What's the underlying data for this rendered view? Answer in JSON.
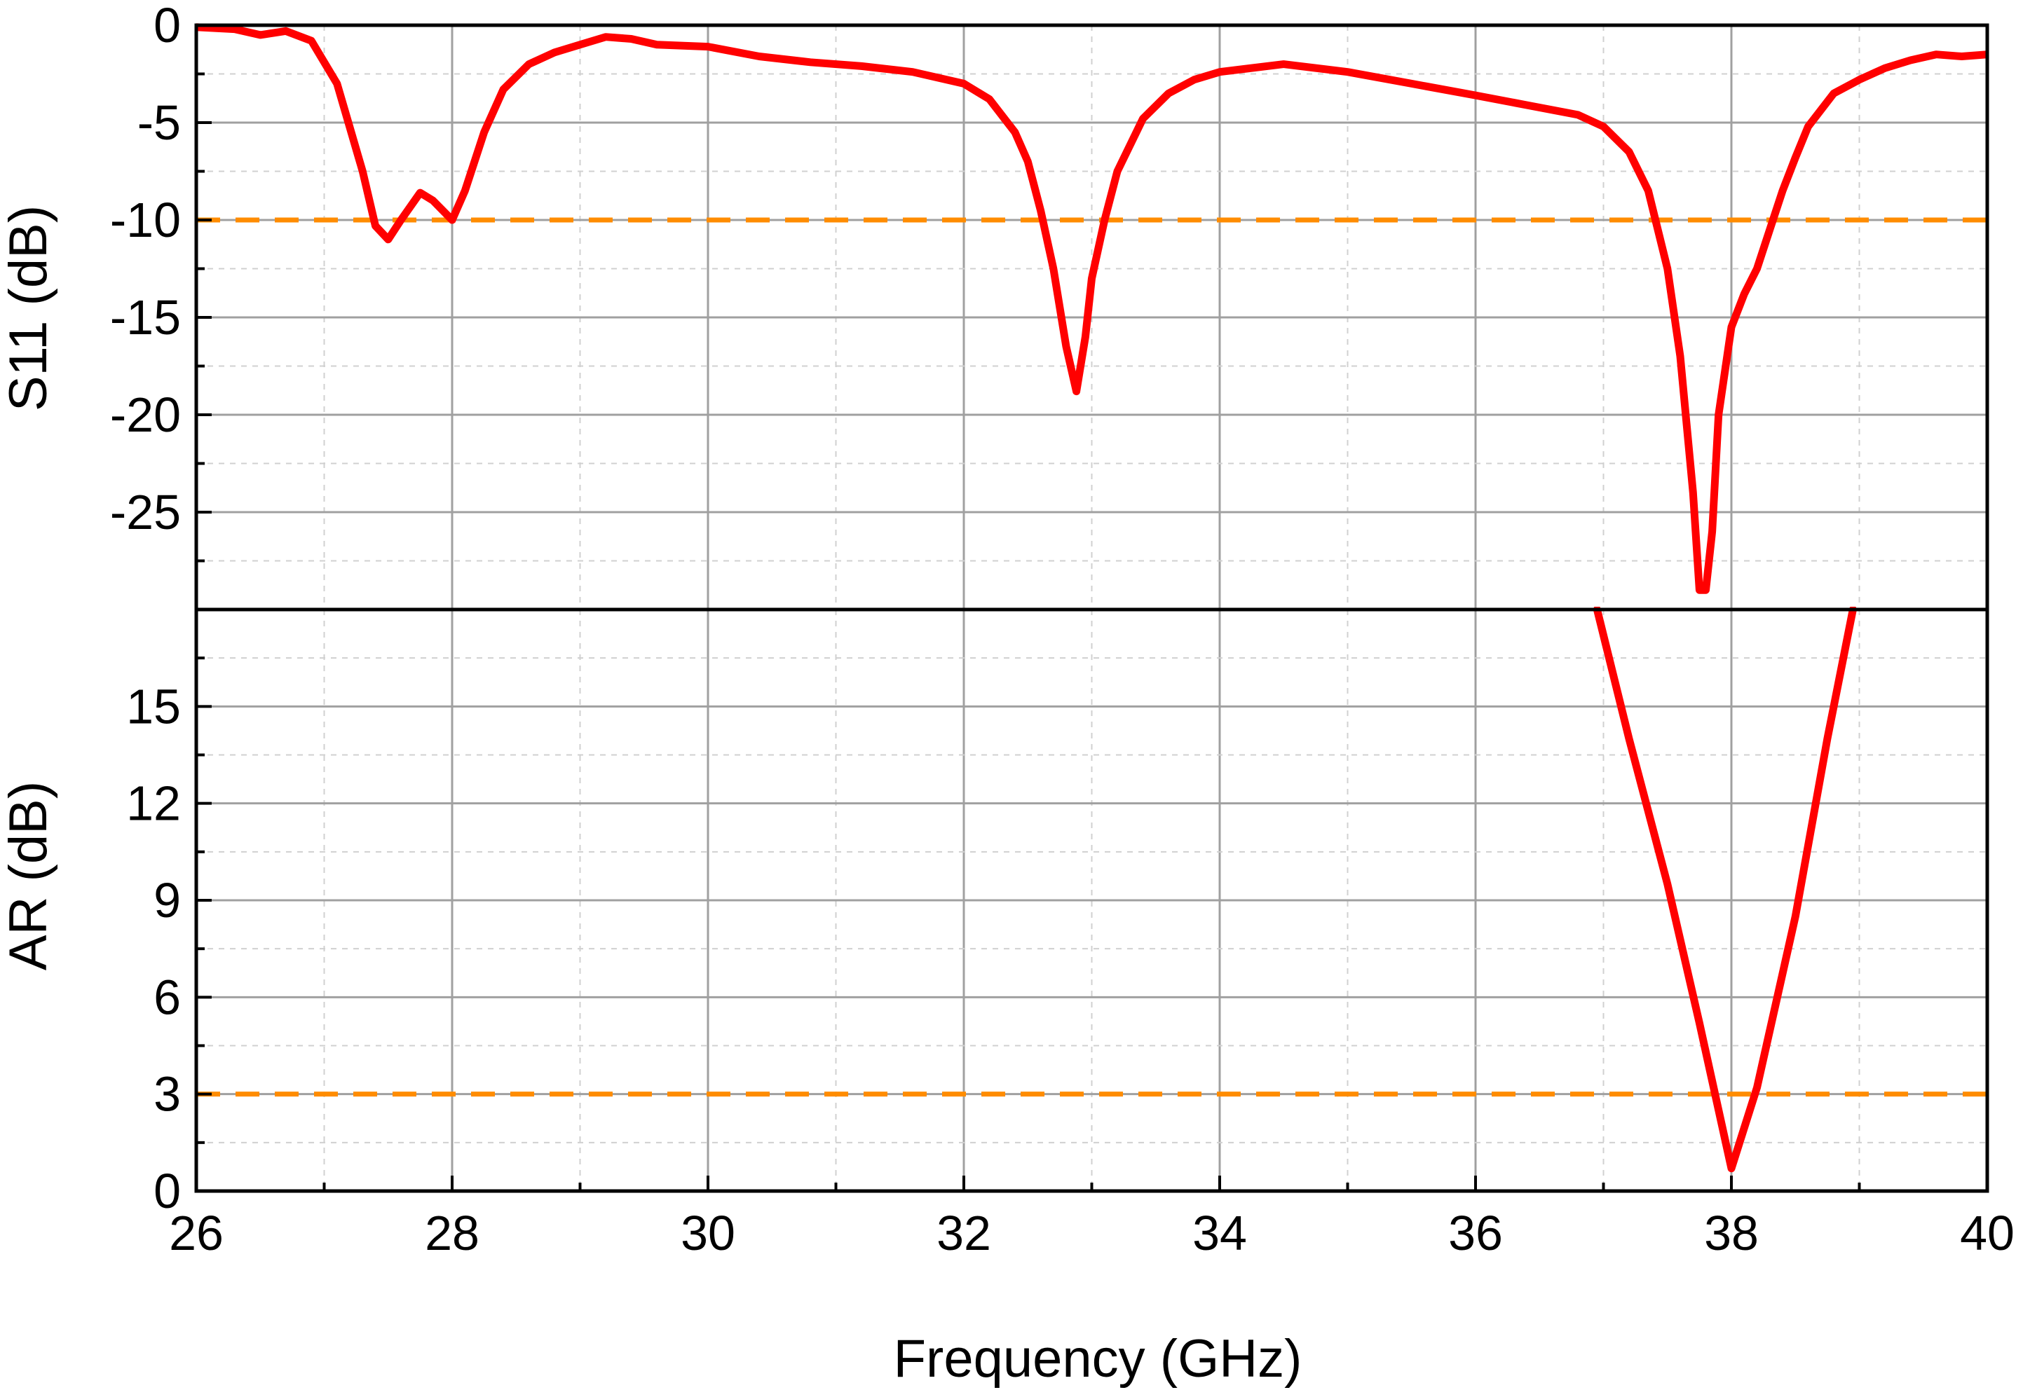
{
  "chart_data": [
    {
      "type": "line",
      "panel": "top",
      "ylabel": "S11 (dB)",
      "xlabel": "Frequency (GHz)",
      "xlim": [
        26,
        40
      ],
      "ylim": [
        -30,
        0
      ],
      "x_ticks": [
        26,
        28,
        30,
        32,
        34,
        36,
        38,
        40
      ],
      "y_ticks": [
        0,
        -5,
        -10,
        -15,
        -20,
        -25
      ],
      "grid": true,
      "reference_line": {
        "y": -10,
        "style": "dashed",
        "color": "#ff8c00"
      },
      "series": [
        {
          "color": "#ff0000",
          "x": [
            26.0,
            26.3,
            26.5,
            26.7,
            26.9,
            27.1,
            27.3,
            27.4,
            27.5,
            27.6,
            27.75,
            27.85,
            28.0,
            28.1,
            28.25,
            28.4,
            28.6,
            28.8,
            29.0,
            29.2,
            29.4,
            29.6,
            30.0,
            30.4,
            30.8,
            31.2,
            31.6,
            32.0,
            32.2,
            32.4,
            32.5,
            32.6,
            32.7,
            32.8,
            32.88,
            32.95,
            33.0,
            33.1,
            33.2,
            33.4,
            33.6,
            33.8,
            34.0,
            34.5,
            35.0,
            35.5,
            36.0,
            36.4,
            36.8,
            37.0,
            37.2,
            37.35,
            37.5,
            37.6,
            37.7,
            37.75,
            37.8,
            37.85,
            37.9,
            38.0,
            38.1,
            38.2,
            38.3,
            38.4,
            38.5,
            38.6,
            38.8,
            39.0,
            39.2,
            39.4,
            39.6,
            39.8,
            40.0
          ],
          "y": [
            -0.1,
            -0.2,
            -0.5,
            -0.3,
            -0.8,
            -3.0,
            -7.5,
            -10.3,
            -11.0,
            -10.0,
            -8.6,
            -9.0,
            -10.0,
            -8.5,
            -5.5,
            -3.3,
            -2.0,
            -1.4,
            -1.0,
            -0.6,
            -0.7,
            -1.0,
            -1.1,
            -1.6,
            -1.9,
            -2.1,
            -2.4,
            -3.0,
            -3.8,
            -5.5,
            -7.0,
            -9.5,
            -12.5,
            -16.5,
            -18.8,
            -16.0,
            -13.0,
            -10.0,
            -7.5,
            -4.8,
            -3.5,
            -2.8,
            -2.4,
            -2.0,
            -2.4,
            -3.0,
            -3.6,
            -4.1,
            -4.6,
            -5.2,
            -6.5,
            -8.5,
            -12.5,
            -17.0,
            -24.0,
            -29.0,
            -29.0,
            -26.0,
            -20.0,
            -15.5,
            -13.8,
            -12.5,
            -10.5,
            -8.5,
            -6.8,
            -5.2,
            -3.5,
            -2.8,
            -2.2,
            -1.8,
            -1.5,
            -1.6,
            -1.5
          ]
        }
      ]
    },
    {
      "type": "line",
      "panel": "bottom",
      "ylabel": "AR (dB)",
      "xlabel": "Frequency (GHz)",
      "xlim": [
        26,
        40
      ],
      "ylim": [
        0,
        18
      ],
      "x_ticks": [
        26,
        28,
        30,
        32,
        34,
        36,
        38,
        40
      ],
      "y_ticks": [
        0,
        3,
        6,
        9,
        12,
        15
      ],
      "grid": true,
      "reference_line": {
        "y": 3,
        "style": "dashed",
        "color": "#ff8c00"
      },
      "series": [
        {
          "color": "#ff0000",
          "x": [
            36.95,
            37.2,
            37.5,
            37.75,
            38.0,
            38.2,
            38.5,
            38.75,
            38.95
          ],
          "y": [
            18.0,
            14.0,
            9.5,
            5.2,
            0.7,
            3.2,
            8.5,
            14.0,
            18.0
          ]
        }
      ]
    }
  ]
}
